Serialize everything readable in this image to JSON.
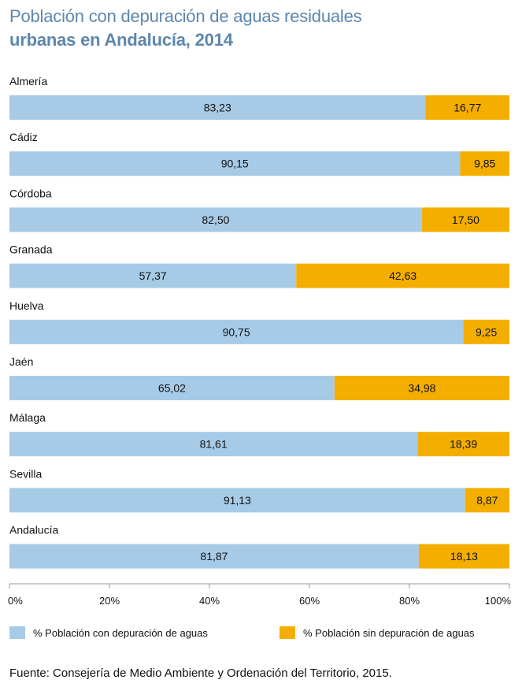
{
  "title": {
    "line1": "Población con depuración de aguas residuales",
    "line2": "urbanas en Andalucía, 2014"
  },
  "colors": {
    "with": "#a7cbe7",
    "without": "#f4ae00",
    "axis": "#9a9a9a",
    "title": "#5d86ad"
  },
  "chart_data": {
    "type": "bar",
    "orientation": "horizontal",
    "stacked": true,
    "categories": [
      "Almería",
      "Cádiz",
      "Córdoba",
      "Granada",
      "Huelva",
      "Jaén",
      "Málaga",
      "Sevilla",
      "Andalucía"
    ],
    "series": [
      {
        "name": "% Población con depuración de aguas",
        "values": [
          83.23,
          90.15,
          82.5,
          57.37,
          90.75,
          65.02,
          81.61,
          91.13,
          81.87
        ],
        "labels": [
          "83,23",
          "90,15",
          "82,50",
          "57,37",
          "90,75",
          "65,02",
          "81,61",
          "91,13",
          "81,87"
        ]
      },
      {
        "name": "% Población sin depuración de aguas",
        "values": [
          16.77,
          9.85,
          17.5,
          42.63,
          9.25,
          34.98,
          18.39,
          8.87,
          18.13
        ],
        "labels": [
          "16,77",
          "9,85",
          "17,50",
          "42,63",
          "9,25",
          "34,98",
          "18,39",
          "8,87",
          "18,13"
        ]
      }
    ],
    "xlim": [
      0,
      100
    ],
    "xticks": [
      "0%",
      "20%",
      "40%",
      "60%",
      "80%",
      "100%"
    ],
    "xlabel": "",
    "ylabel": "",
    "grid": false,
    "legend": "bottom"
  },
  "legend": {
    "with_label": "% Población con depuración de aguas",
    "without_label": "% Población sin depuración de aguas"
  },
  "source": "Fuente: Consejería de Medio Ambiente y Ordenación del Territorio, 2015."
}
